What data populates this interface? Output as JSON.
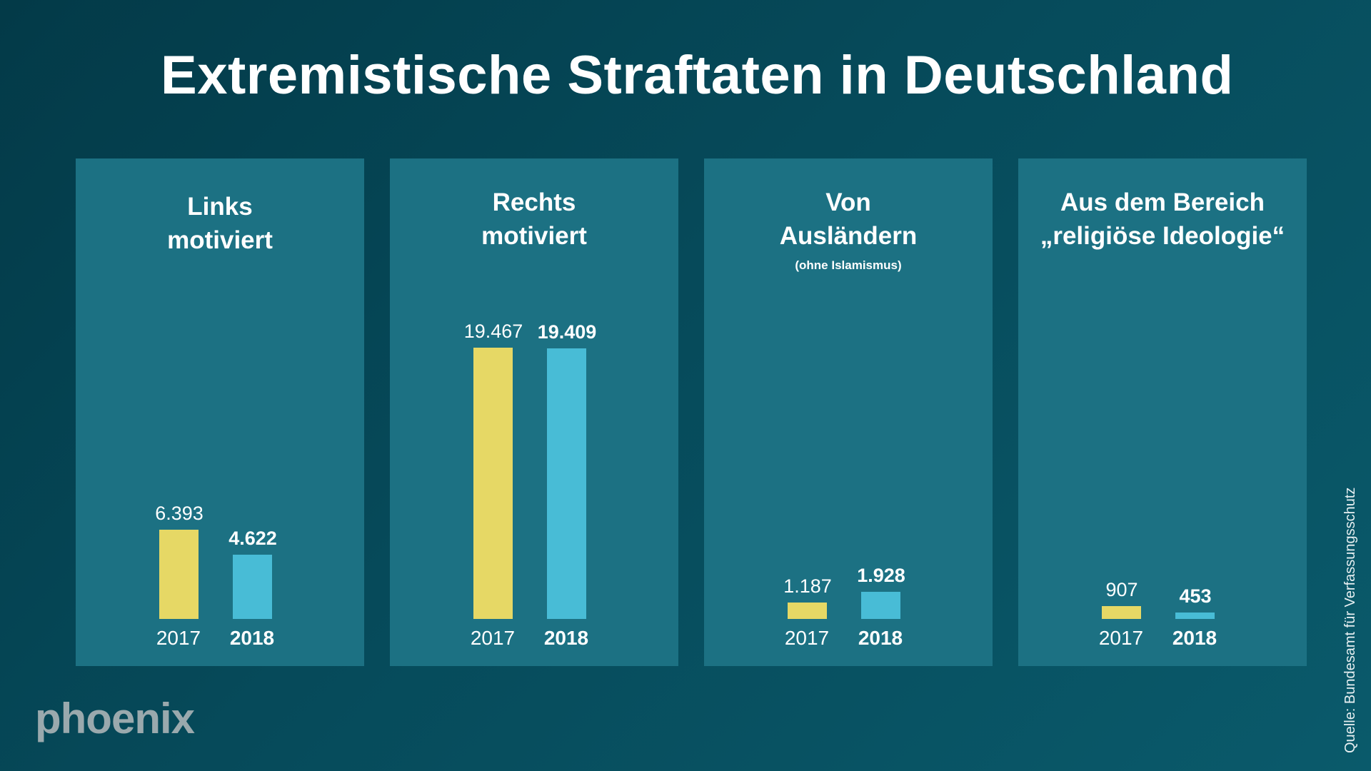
{
  "chart_data": {
    "type": "bar",
    "title": "Extremistische Straftaten in Deutschland",
    "categories": [
      "2017",
      "2018"
    ],
    "panels": [
      {
        "title_lines": [
          "Links",
          "motiviert"
        ],
        "subtitle": "",
        "values": [
          6393,
          4622
        ],
        "labels": [
          "6.393",
          "4.622"
        ]
      },
      {
        "title_lines": [
          "Rechts",
          "motiviert"
        ],
        "subtitle": "",
        "values": [
          19467,
          19409
        ],
        "labels": [
          "19.467",
          "19.409"
        ]
      },
      {
        "title_lines": [
          "Von",
          "Ausländern"
        ],
        "subtitle": "(ohne Islamismus)",
        "values": [
          1187,
          1928
        ],
        "labels": [
          "1.187",
          "1.928"
        ]
      },
      {
        "title_lines": [
          "Aus dem Bereich",
          "„religiöse Ideologie“"
        ],
        "subtitle": "",
        "values": [
          907,
          453
        ],
        "labels": [
          "907",
          "453"
        ]
      }
    ],
    "colors": {
      "2017": "#e6d865",
      "2018": "#48bcd6"
    },
    "source": "Quelle: Bundesamt für Verfassungsschutz",
    "grid": false
  },
  "brand": {
    "logo": "phoenix"
  }
}
